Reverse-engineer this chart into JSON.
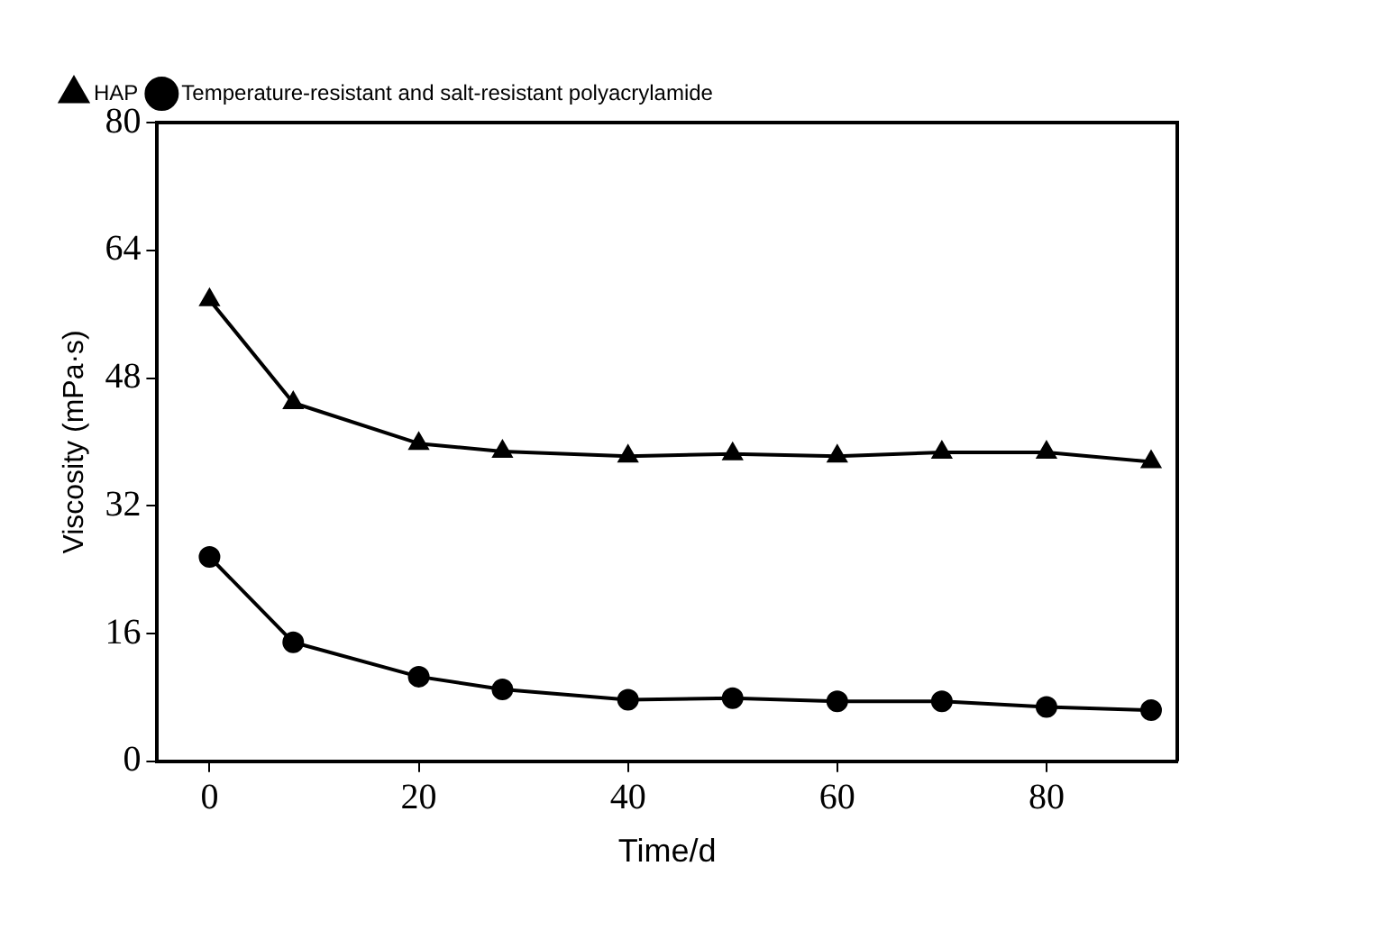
{
  "chart_data": {
    "type": "line",
    "xlabel": "Time/d",
    "ylabel": "Viscosity (mPa·s)",
    "x": [
      0,
      8,
      20,
      28,
      40,
      50,
      60,
      70,
      80,
      90
    ],
    "series": [
      {
        "name": "HAP",
        "color": "#000000",
        "marker": "triangle",
        "values": [
          57.8,
          44.9,
          39.8,
          38.8,
          38.2,
          38.5,
          38.2,
          38.7,
          38.7,
          37.5
        ]
      },
      {
        "name": "Temperature-resistant and salt-resistant polyacrylamide",
        "color": "#000000",
        "marker": "circle",
        "values": [
          25.6,
          14.9,
          10.6,
          9.0,
          7.7,
          7.9,
          7.5,
          7.5,
          6.8,
          6.4
        ]
      }
    ],
    "xlim": [
      -5,
      92.5
    ],
    "xticks": [
      0,
      20,
      40,
      60,
      80
    ],
    "ylim": [
      0,
      80
    ],
    "yticks": [
      0,
      16,
      32,
      48,
      64,
      80
    ],
    "grid": false,
    "legend": "top left",
    "line_style": "solid"
  }
}
